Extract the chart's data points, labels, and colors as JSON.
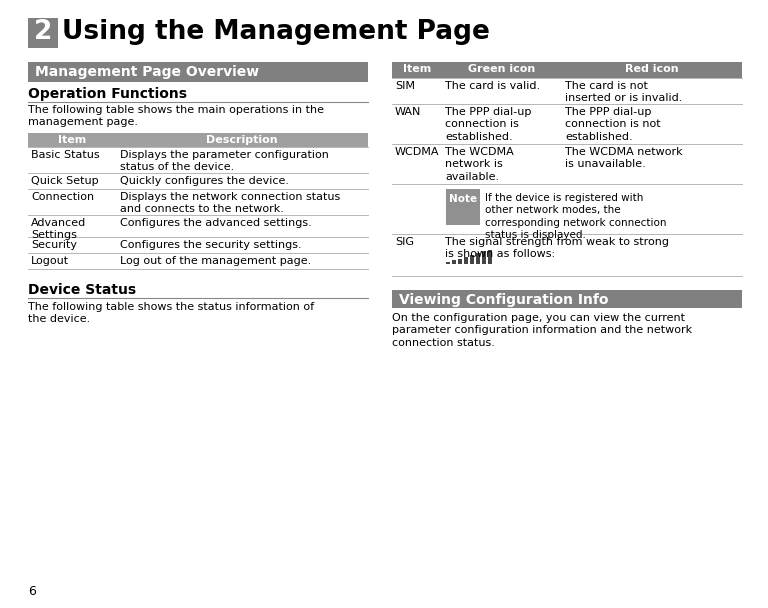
{
  "title_number": "2",
  "title_text": "Using the Management Page",
  "title_number_bg": "#808080",
  "title_number_color": "#ffffff",
  "section1_title": "Management Page Overview",
  "section1_bg": "#808080",
  "section1_color": "#ffffff",
  "subsection1_title": "Operation Functions",
  "subsection1_desc": "The following table shows the main operations in the\nmanagement page.",
  "left_table_header": [
    "Item",
    "Description"
  ],
  "left_table_header_bg": "#a0a0a0",
  "left_table_header_color": "#ffffff",
  "left_table_rows": [
    [
      "Basic Status",
      "Displays the parameter configuration\nstatus of the device."
    ],
    [
      "Quick Setup",
      "Quickly configures the device."
    ],
    [
      "Connection",
      "Displays the network connection status\nand connects to the network."
    ],
    [
      "Advanced\nSettings",
      "Configures the advanced settings."
    ],
    [
      "Security",
      "Configures the security settings."
    ],
    [
      "Logout",
      "Log out of the management page."
    ]
  ],
  "device_status_title": "Device Status",
  "device_status_desc": "The following table shows the status information of\nthe device.",
  "right_table_header": [
    "Item",
    "Green icon",
    "Red icon"
  ],
  "right_table_header_bg": "#808080",
  "right_table_header_color": "#ffffff",
  "note_bg": "#909090",
  "note_color": "#ffffff",
  "note_text": "If the device is registered with\nother network modes, the\ncorresponding network connection\nstatus is displayed.",
  "section2_title": "Viewing Configuration Info",
  "section2_bg": "#808080",
  "section2_color": "#ffffff",
  "section2_desc": "On the configuration page, you can view the current\nparameter configuration information and the network\nconnection status.",
  "bg_color": "#ffffff",
  "text_color": "#000000",
  "line_color": "#999999",
  "page_number": "6"
}
